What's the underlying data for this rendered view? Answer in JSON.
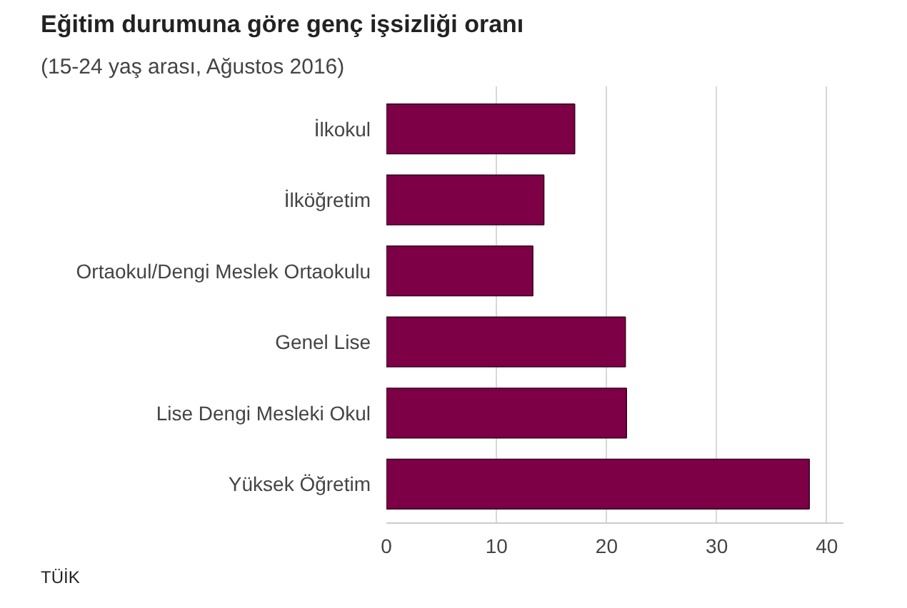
{
  "chart_data": {
    "type": "bar",
    "orientation": "horizontal",
    "title": "Eğitim durumuna göre genç işsizliği oranı",
    "subtitle": "(15-24 yaş arası, Ağustos 2016)",
    "categories": [
      "İlkokul",
      "İlköğretim",
      "Ortaokul/Dengi Meslek Ortaokulu",
      "Genel Lise",
      "Lise Dengi Mesleki Okul",
      "Yüksek Öğretim"
    ],
    "values": [
      17.1,
      14.3,
      13.3,
      21.7,
      21.8,
      38.4
    ],
    "color": "#7d0047",
    "xlim": [
      0,
      41.5
    ],
    "xticks": [
      0,
      10,
      20,
      30,
      40
    ],
    "grid": "x",
    "annotations": [
      "TÜİK"
    ]
  }
}
